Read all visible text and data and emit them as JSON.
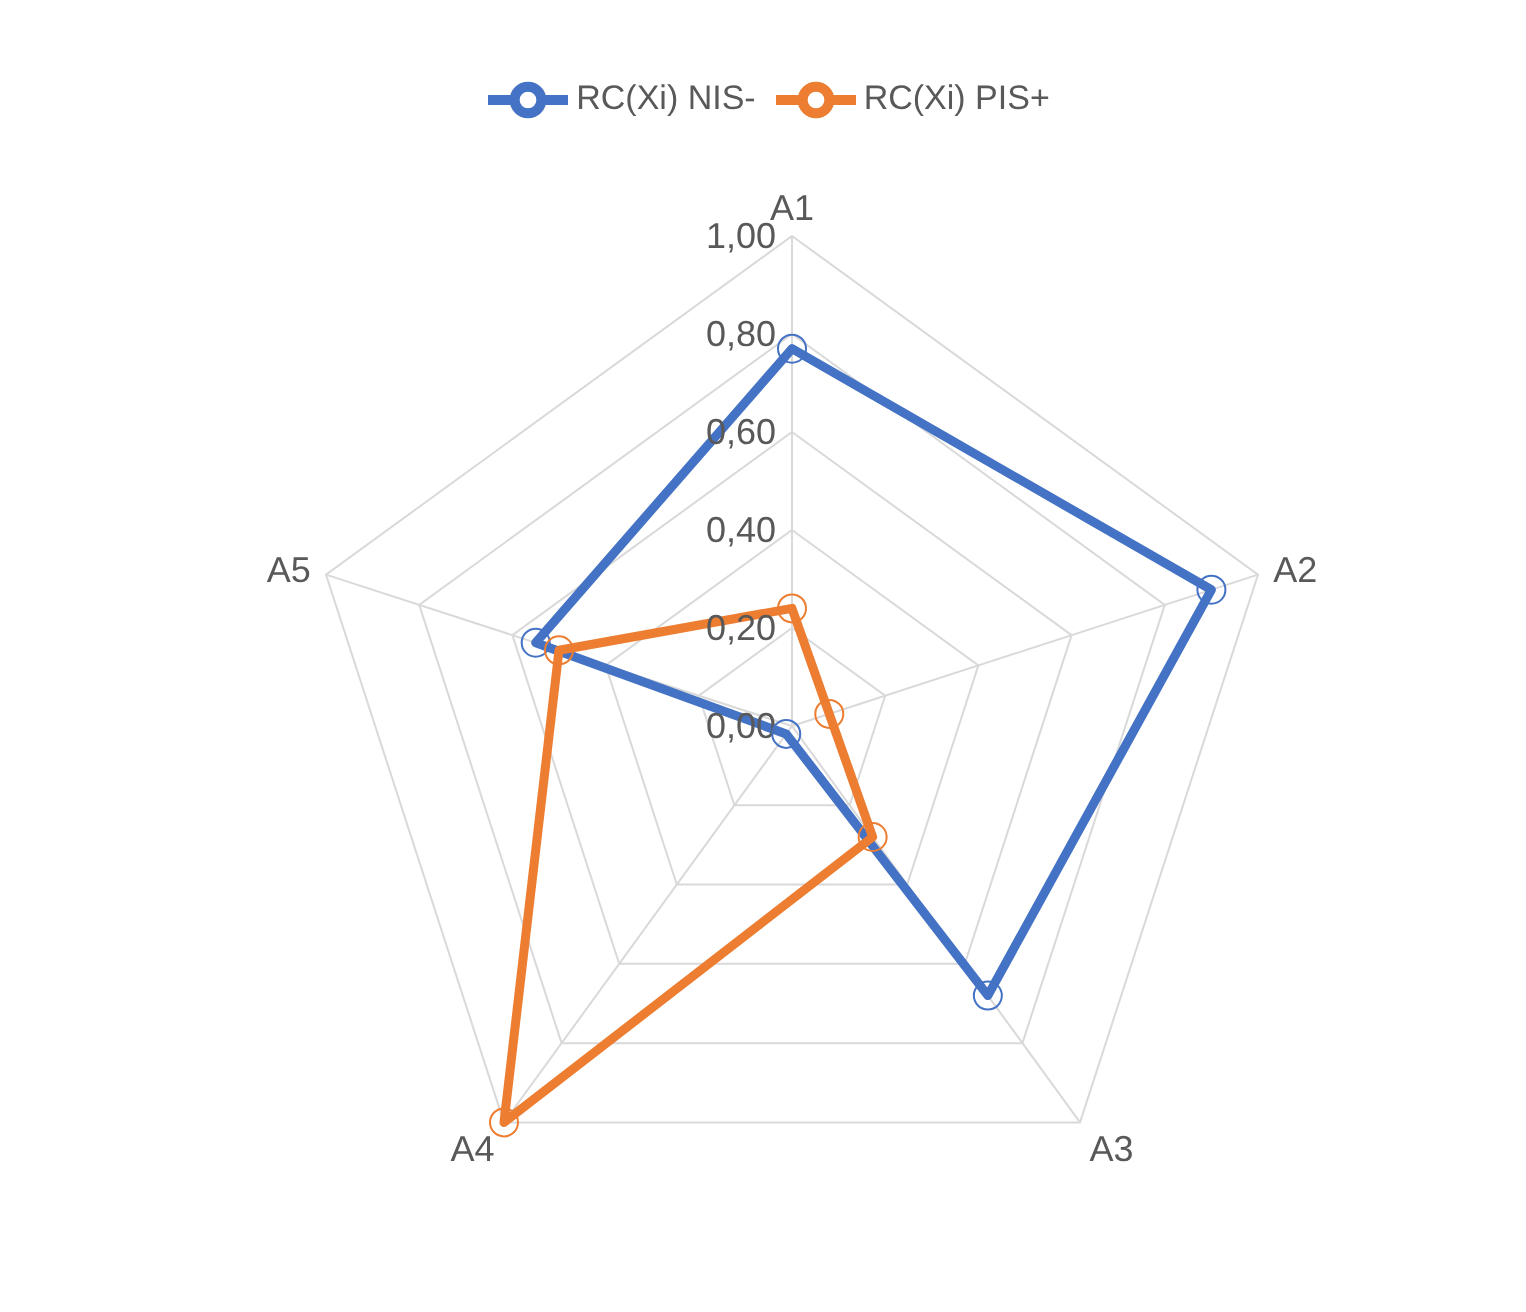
{
  "chart_data": {
    "type": "radar",
    "categories": [
      "A1",
      "A2",
      "A3",
      "A4",
      "A5"
    ],
    "series": [
      {
        "name": "RC(Xi) NIS-",
        "color": "#4472c4",
        "values": [
          0.77,
          0.9,
          0.68,
          0.02,
          0.55
        ]
      },
      {
        "name": "RC(Xi) PIS+",
        "color": "#ed7d31",
        "values": [
          0.24,
          0.08,
          0.28,
          1.0,
          0.5
        ]
      }
    ],
    "ylim": [
      0,
      1
    ],
    "yticks": [
      {
        "value": 0,
        "label": "0,00"
      },
      {
        "value": 0.2,
        "label": "0,20"
      },
      {
        "value": 0.4,
        "label": "0,40"
      },
      {
        "value": 0.6,
        "label": "0,60"
      },
      {
        "value": 0.8,
        "label": "0,80"
      },
      {
        "value": 1,
        "label": "1,00"
      }
    ],
    "grid": true,
    "legend": "top",
    "marker": "circle"
  }
}
